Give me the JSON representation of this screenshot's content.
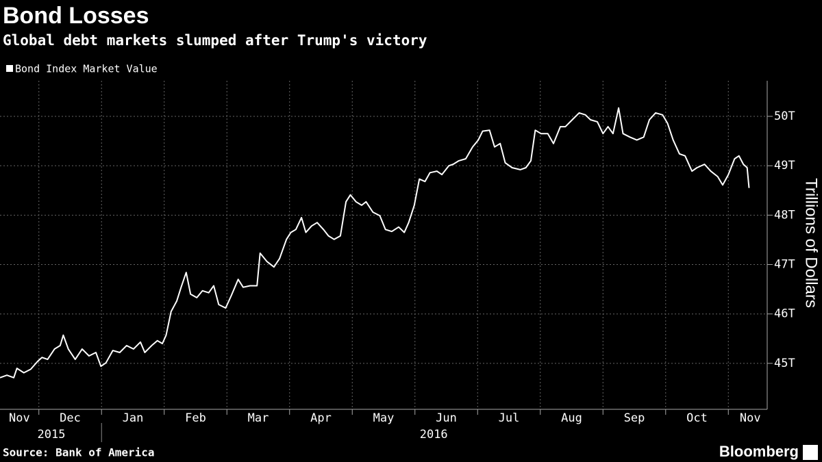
{
  "chart_data": {
    "type": "line",
    "title": "Bond Losses",
    "subtitle": "Global debt markets slumped after Trump's victory",
    "y_axis_label": "Trillions of Dollars",
    "source": "Source: Bank of America",
    "brand": "Bloomberg",
    "xlim": [
      -0.62,
      11.62
    ],
    "ylim": [
      44.07,
      50.72
    ],
    "yticks": [
      {
        "value": 45,
        "label": "45T"
      },
      {
        "value": 46,
        "label": "46T"
      },
      {
        "value": 47,
        "label": "47T"
      },
      {
        "value": 48,
        "label": "48T"
      },
      {
        "value": 49,
        "label": "49T"
      },
      {
        "value": 50,
        "label": "50T"
      }
    ],
    "xticks": [
      {
        "value": -0.31,
        "label": "Nov"
      },
      {
        "value": 0.5,
        "label": "Dec"
      },
      {
        "value": 1.5,
        "label": "Jan"
      },
      {
        "value": 2.5,
        "label": "Feb"
      },
      {
        "value": 3.5,
        "label": "Mar"
      },
      {
        "value": 4.5,
        "label": "Apr"
      },
      {
        "value": 5.5,
        "label": "May"
      },
      {
        "value": 6.5,
        "label": "Jun"
      },
      {
        "value": 7.5,
        "label": "Jul"
      },
      {
        "value": 8.5,
        "label": "Aug"
      },
      {
        "value": 9.5,
        "label": "Sep"
      },
      {
        "value": 10.5,
        "label": "Oct"
      },
      {
        "value": 11.35,
        "label": "Nov"
      }
    ],
    "xgrid": [
      0,
      1,
      2,
      3,
      4,
      5,
      6,
      7,
      8,
      9,
      10,
      11
    ],
    "year_labels": [
      {
        "value": 0.2,
        "label": "2015"
      },
      {
        "value": 6.3,
        "label": "2016"
      }
    ],
    "grid": true,
    "x": [
      -0.62,
      -0.51,
      -0.4,
      -0.35,
      -0.24,
      -0.13,
      -0.02,
      0.05,
      0.14,
      0.25,
      0.34,
      0.39,
      0.47,
      0.58,
      0.69,
      0.8,
      0.91,
      0.99,
      1.07,
      1.18,
      1.29,
      1.4,
      1.51,
      1.62,
      1.69,
      1.8,
      1.89,
      1.97,
      2.03,
      2.11,
      2.2,
      2.27,
      2.35,
      2.42,
      2.52,
      2.61,
      2.71,
      2.79,
      2.87,
      2.98,
      3.07,
      3.18,
      3.26,
      3.37,
      3.48,
      3.53,
      3.64,
      3.75,
      3.84,
      3.95,
      4.02,
      4.1,
      4.19,
      4.26,
      4.35,
      4.44,
      4.54,
      4.62,
      4.71,
      4.81,
      4.9,
      4.97,
      5.06,
      5.15,
      5.22,
      5.33,
      5.44,
      5.53,
      5.63,
      5.74,
      5.83,
      5.9,
      5.99,
      6.07,
      6.16,
      6.24,
      6.35,
      6.43,
      6.54,
      6.61,
      6.7,
      6.81,
      6.92,
      7.01,
      7.08,
      7.19,
      7.27,
      7.36,
      7.44,
      7.55,
      7.68,
      7.77,
      7.85,
      7.92,
      8.01,
      8.12,
      8.21,
      8.32,
      8.4,
      8.51,
      8.62,
      8.72,
      8.8,
      8.91,
      9.0,
      9.08,
      9.16,
      9.25,
      9.32,
      9.43,
      9.54,
      9.65,
      9.74,
      9.84,
      9.95,
      10.03,
      10.12,
      10.22,
      10.31,
      10.42,
      10.5,
      10.62,
      10.72,
      10.83,
      10.91,
      11.0,
      11.1,
      11.17,
      11.24,
      11.3,
      11.33
    ],
    "series": [
      {
        "name": "Bond Index Market Value",
        "color": "#ffffff",
        "values": [
          44.71,
          44.76,
          44.71,
          44.9,
          44.81,
          44.88,
          45.04,
          45.12,
          45.08,
          45.29,
          45.36,
          45.57,
          45.29,
          45.08,
          45.29,
          45.15,
          45.22,
          44.94,
          45.01,
          45.26,
          45.22,
          45.36,
          45.29,
          45.43,
          45.22,
          45.36,
          45.46,
          45.4,
          45.57,
          46.05,
          46.26,
          46.54,
          46.84,
          46.4,
          46.33,
          46.47,
          46.43,
          46.57,
          46.19,
          46.12,
          46.37,
          46.7,
          46.54,
          46.57,
          46.57,
          47.23,
          47.06,
          46.95,
          47.12,
          47.51,
          47.65,
          47.71,
          47.95,
          47.65,
          47.78,
          47.85,
          47.71,
          47.58,
          47.51,
          47.58,
          48.27,
          48.41,
          48.27,
          48.2,
          48.27,
          48.06,
          47.99,
          47.71,
          47.67,
          47.76,
          47.65,
          47.85,
          48.2,
          48.73,
          48.68,
          48.86,
          48.89,
          48.82,
          49.0,
          49.03,
          49.1,
          49.14,
          49.38,
          49.52,
          49.7,
          49.72,
          49.38,
          49.45,
          49.06,
          48.96,
          48.92,
          48.96,
          49.1,
          49.72,
          49.65,
          49.65,
          49.45,
          49.79,
          49.79,
          49.93,
          50.07,
          50.03,
          49.93,
          49.89,
          49.65,
          49.79,
          49.65,
          50.17,
          49.65,
          49.58,
          49.52,
          49.58,
          49.93,
          50.07,
          50.03,
          49.86,
          49.52,
          49.24,
          49.2,
          48.89,
          48.96,
          49.03,
          48.89,
          48.78,
          48.61,
          48.82,
          49.14,
          49.2,
          49.03,
          48.96,
          48.55
        ]
      }
    ]
  }
}
